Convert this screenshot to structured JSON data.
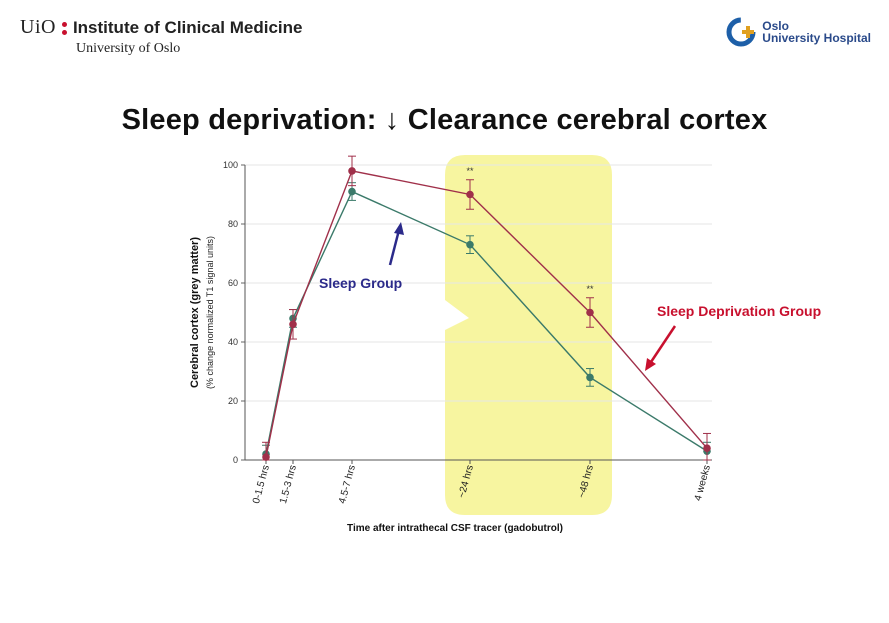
{
  "header": {
    "uio": "UiO",
    "institute": "Institute of Clinical Medicine",
    "university": "University of Oslo",
    "hospital_line1": "Oslo",
    "hospital_line2": "University Hospital"
  },
  "slide_title": "Sleep deprivation: ↓ Clearance cerebral cortex",
  "colors": {
    "sleep": "#3b7a6a",
    "deprivation": "#a0304a",
    "highlight": "#f7f5a0",
    "sleep_label": "#2b2a8a",
    "deprivation_label": "#c8102e"
  },
  "chart_data": {
    "type": "line",
    "ylabel": "Cerebral cortex (grey matter)",
    "ylabel_sub": "(% change normalized T1 signal units)",
    "xlabel": "Time after intrathecal CSF tracer (gadobutrol)",
    "categories": [
      "0-1.5 hrs",
      "1.5-3 hrs",
      "4.5-7 hrs",
      "~24 hrs",
      "~48 hrs",
      "4 weeks"
    ],
    "x": [
      0.75,
      2.25,
      5.75,
      24,
      48,
      672
    ],
    "ylim": [
      0,
      100
    ],
    "yticks": [
      "0",
      "20",
      "40",
      "60",
      "80",
      "100"
    ],
    "grid": true,
    "series": [
      {
        "name": "Sleep Group",
        "values": [
          2,
          48,
          91,
          73,
          28,
          3
        ],
        "err": [
          3,
          3,
          3,
          3,
          3,
          3
        ]
      },
      {
        "name": "Sleep Deprivation Group",
        "values": [
          1,
          46,
          98,
          90,
          50,
          4
        ],
        "err": [
          5,
          5,
          5,
          5,
          5,
          5
        ]
      }
    ],
    "significance": [
      "",
      "",
      "",
      "**",
      "**",
      ""
    ],
    "highlight_category_range": [
      "~24 hrs",
      "~48 hrs"
    ]
  }
}
